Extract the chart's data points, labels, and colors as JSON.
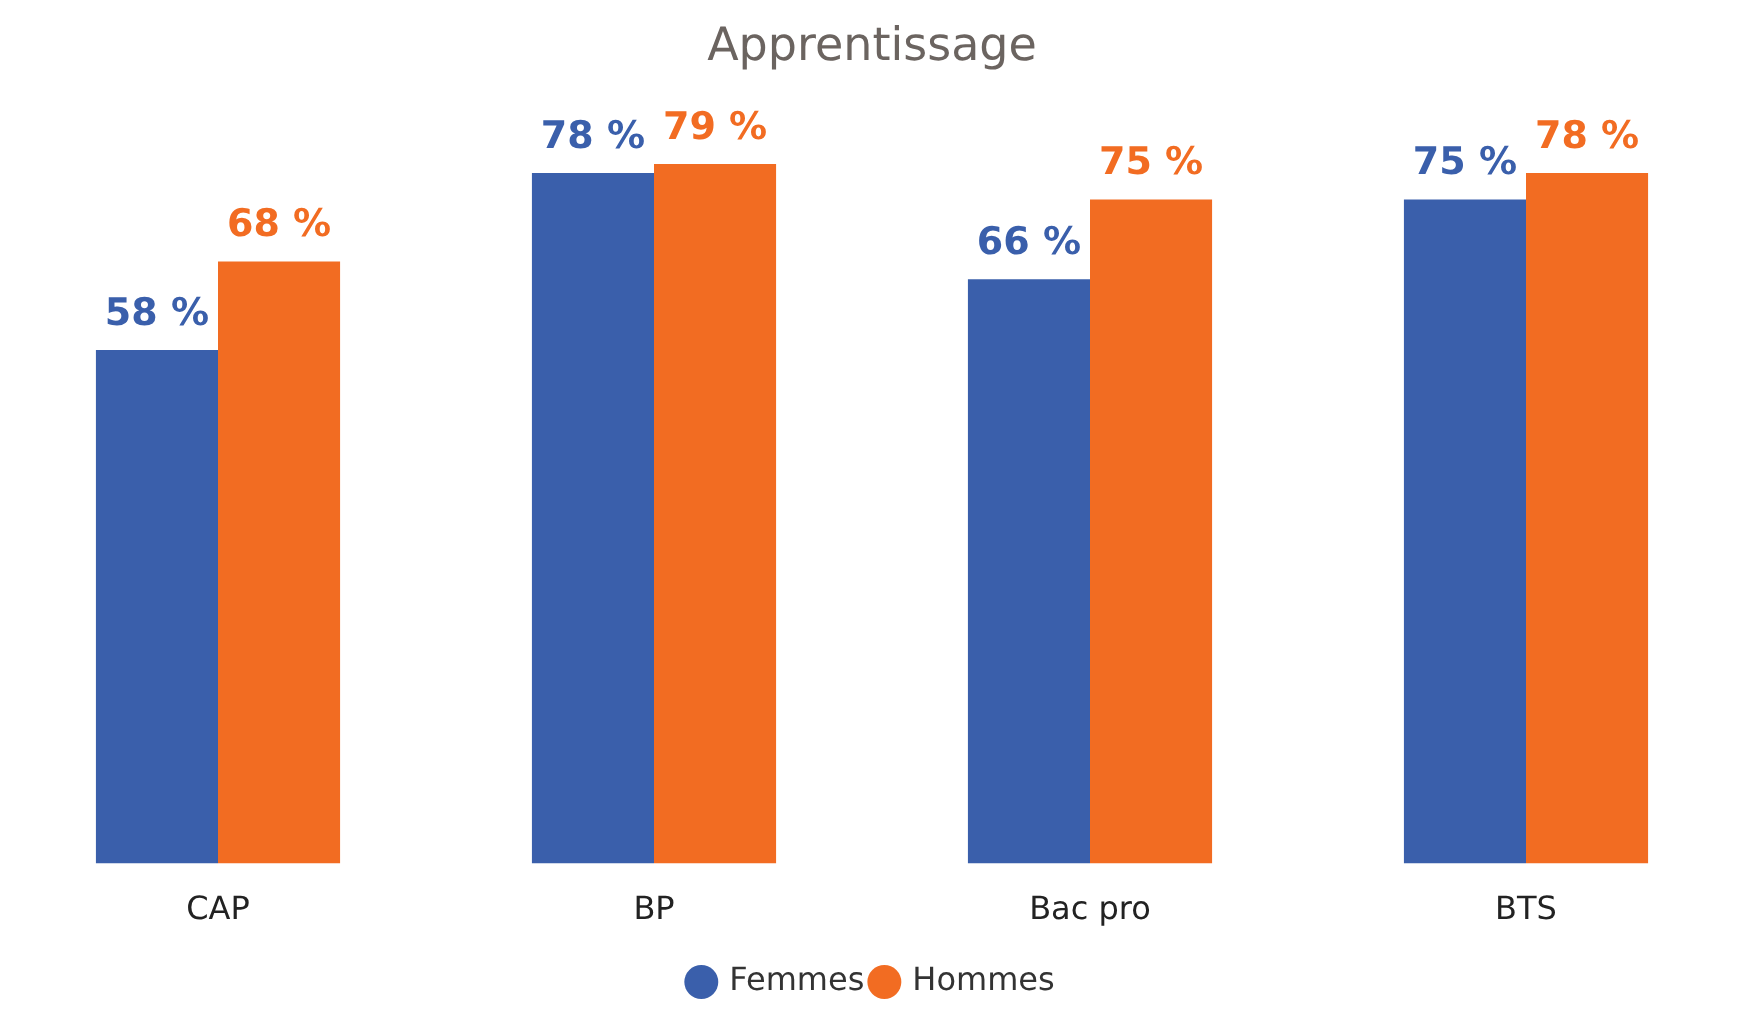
{
  "chart_data": {
    "type": "bar",
    "title": "Apprentissage",
    "categories": [
      "CAP",
      "BP",
      "Bac pro",
      "BTS"
    ],
    "series": [
      {
        "name": "Femmes",
        "color": "#3a5fab",
        "values": [
          58,
          78,
          66,
          75
        ],
        "value_labels": [
          "58 %",
          "78 %",
          "66 %",
          "75 %"
        ]
      },
      {
        "name": "Hommes",
        "color": "#f26c22",
        "values": [
          68,
          79,
          75,
          78
        ],
        "value_labels": [
          "68 %",
          "79 %",
          "75 %",
          "78 %"
        ]
      }
    ],
    "grid": false,
    "legend": "bottom",
    "tick_labels": "x"
  }
}
